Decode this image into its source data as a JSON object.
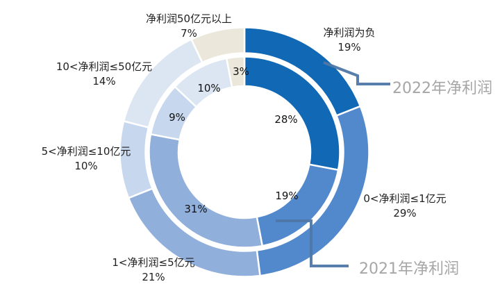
{
  "chart_data": {
    "type": "donut",
    "title": "",
    "categories": [
      "净利润为负",
      "0<净利润≤1亿元",
      "1<净利润≤5亿元",
      "5<净利润≤10亿元",
      "10<净利润≤50亿元",
      "净利润50亿元以上"
    ],
    "series": [
      {
        "name": "2022年净利润",
        "ring": "outer",
        "values": [
          19,
          29,
          21,
          10,
          14,
          7
        ]
      },
      {
        "name": "2021年净利润",
        "ring": "inner",
        "values": [
          28,
          19,
          31,
          9,
          10,
          3
        ]
      }
    ],
    "colors": [
      "#1168B4",
      "#5289CD",
      "#91AFDB",
      "#C6D7EE",
      "#DCE6F2",
      "#EBE8DB"
    ],
    "label_format": "percent",
    "start_angle_deg": 0,
    "direction": "clockwise",
    "legend": "none",
    "annotations": [
      {
        "text": "2022年净利润",
        "target": "outer-ring"
      },
      {
        "text": "2021年净利润",
        "target": "inner-ring"
      }
    ]
  },
  "styles": {
    "background": "#FFFFFF",
    "category_label_color": "#1F1F1F",
    "inner_label_color": "#111111",
    "annotation_text_color": "#A6A6A6",
    "callout_line_color": "#4F77A8",
    "segment_separator_color": "#FFFFFF"
  }
}
